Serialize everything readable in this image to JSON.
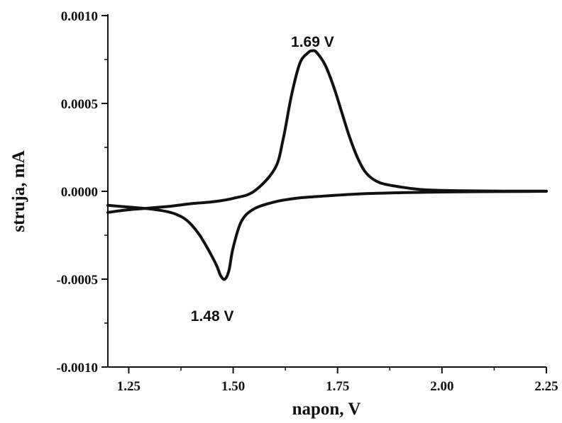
{
  "chart_data": {
    "type": "line",
    "xlabel": "napon, V",
    "ylabel": "struja, mA",
    "xlim": [
      1.2,
      2.25
    ],
    "ylim": [
      -0.001,
      0.001
    ],
    "x_ticks": [
      {
        "value": 1.25,
        "label": "1.25"
      },
      {
        "value": 1.5,
        "label": "1.50"
      },
      {
        "value": 1.75,
        "label": "1.75"
      },
      {
        "value": 2.0,
        "label": "2.00"
      },
      {
        "value": 2.25,
        "label": "2.25"
      }
    ],
    "y_ticks": [
      {
        "value": 0.001,
        "label": "0.0010"
      },
      {
        "value": 0.0005,
        "label": "0.0005"
      },
      {
        "value": 0.0,
        "label": "0.0000"
      },
      {
        "value": -0.0005,
        "label": "-0.0005"
      },
      {
        "value": -0.001,
        "label": "-0.0010"
      }
    ],
    "annotations": [
      {
        "text": "1.69 V",
        "x": 1.69,
        "y": 0.00085
      },
      {
        "text": "1.48 V",
        "x": 1.45,
        "y": -0.00071
      }
    ],
    "series": [
      {
        "x": [
          1.2,
          1.25,
          1.3,
          1.35,
          1.4,
          1.45,
          1.5,
          1.55,
          1.6,
          1.62,
          1.64,
          1.66,
          1.68,
          1.69,
          1.7,
          1.72,
          1.74,
          1.76,
          1.78,
          1.8,
          1.82,
          1.85,
          1.9,
          1.95,
          2.0,
          2.05,
          2.1,
          2.15,
          2.2,
          2.25
        ],
        "y": [
          -0.00012,
          -0.000105,
          -9.5e-05,
          -8.5e-05,
          -7e-05,
          -6e-05,
          -4e-05,
          0.0,
          0.00013,
          0.0003,
          0.00055,
          0.00073,
          0.00079,
          0.0008,
          0.00079,
          0.00072,
          0.0006,
          0.00045,
          0.0003,
          0.00018,
          0.0001,
          5e-05,
          2.5e-05,
          1e-05,
          5e-06,
          3e-06,
          2e-06,
          1e-06,
          1e-06,
          1e-06
        ]
      },
      {
        "x": [
          2.25,
          2.2,
          2.1,
          2.0,
          1.9,
          1.8,
          1.7,
          1.65,
          1.6,
          1.55,
          1.52,
          1.5,
          1.49,
          1.48,
          1.47,
          1.46,
          1.44,
          1.42,
          1.4,
          1.38,
          1.35,
          1.3,
          1.25,
          1.2
        ],
        "y": [
          0.0,
          -1e-06,
          -2e-06,
          -4e-06,
          -8e-06,
          -1.5e-05,
          -3e-05,
          -4e-05,
          -6e-05,
          -0.0001,
          -0.00017,
          -0.00032,
          -0.00045,
          -0.0005,
          -0.00048,
          -0.00042,
          -0.00033,
          -0.00025,
          -0.00019,
          -0.00015,
          -0.00012,
          -0.0001,
          -9e-05,
          -8e-05
        ]
      }
    ]
  }
}
